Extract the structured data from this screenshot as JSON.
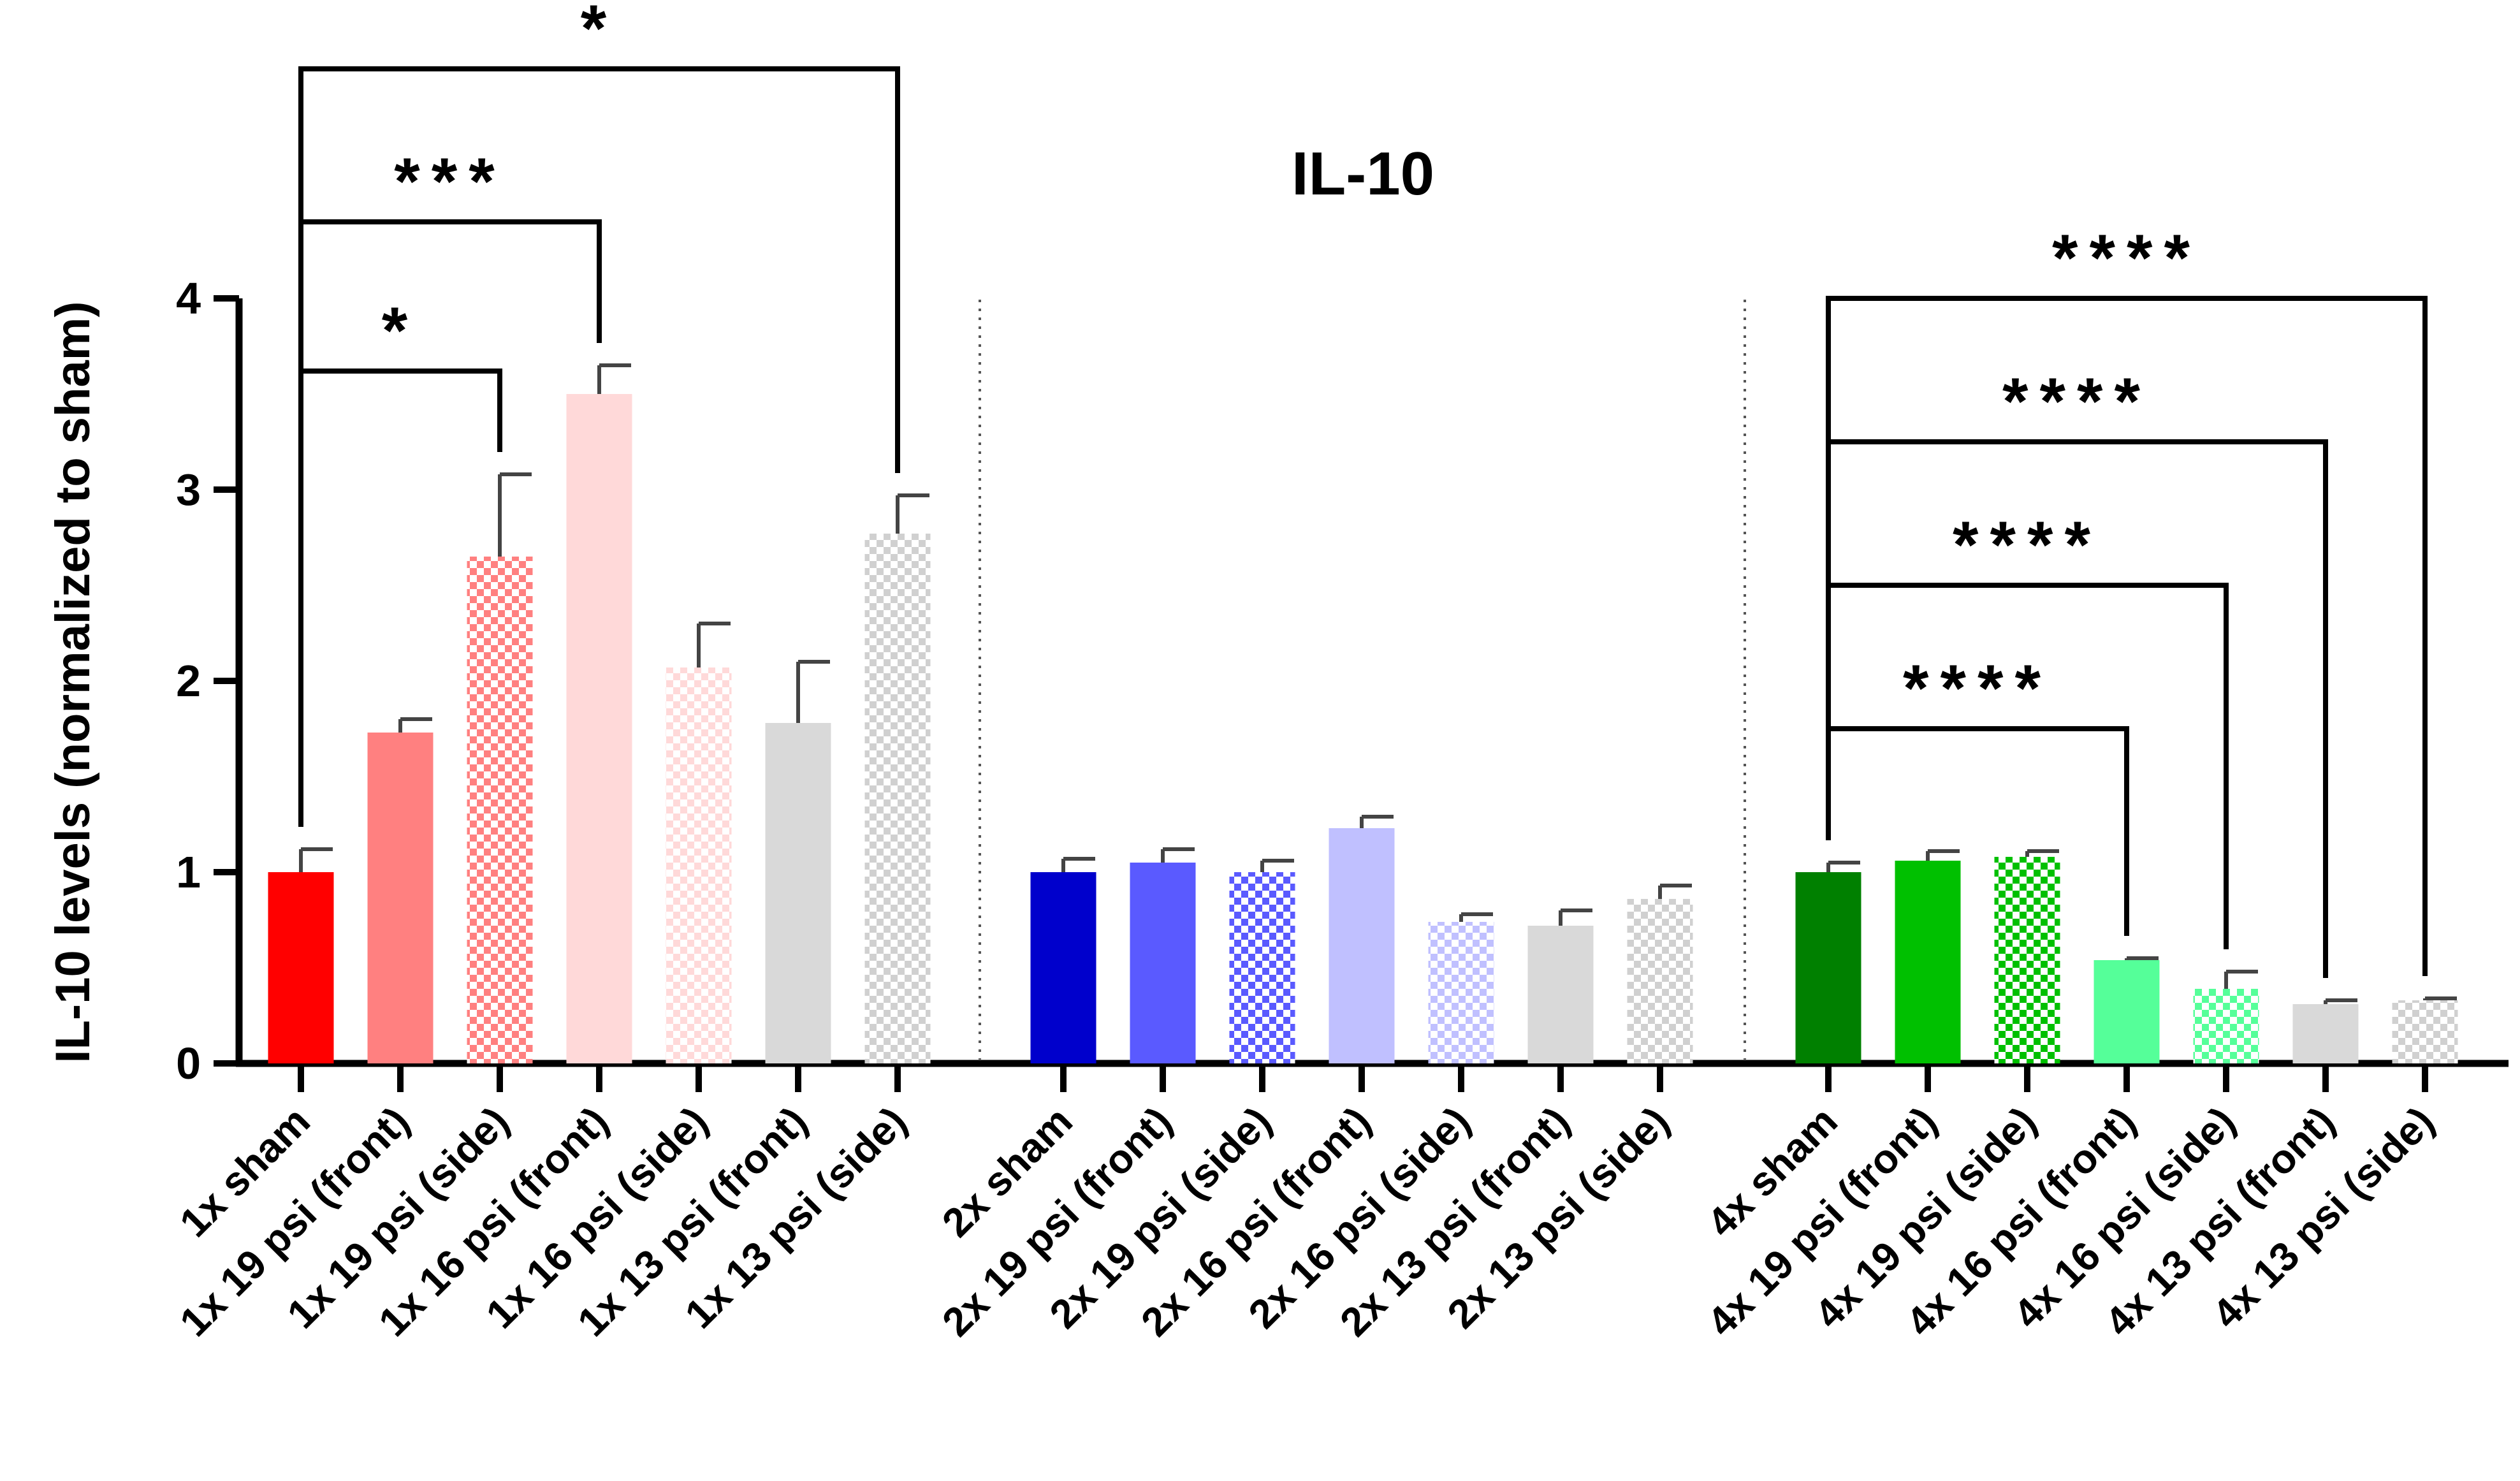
{
  "chart_data": {
    "type": "bar",
    "title": "IL-10",
    "ylabel": "IL-10 levels (normalized to sham)",
    "xlabel": "",
    "ylim": [
      0,
      4
    ],
    "yticks": [
      0,
      1,
      2,
      3,
      4
    ],
    "grid": false,
    "legend": "none",
    "groups": [
      {
        "bars": [
          {
            "label": "1x sham",
            "value": 1.0,
            "error": 0.12,
            "color": "#ff0000",
            "pattern": "solid"
          },
          {
            "label": "1x 19 psi (front)",
            "value": 1.73,
            "error": 0.07,
            "color": "#ff8080",
            "pattern": "solid"
          },
          {
            "label": "1x 19 psi (side)",
            "value": 2.65,
            "error": 0.43,
            "color": "#ff8080",
            "pattern": "checker"
          },
          {
            "label": "1x 16 psi (front)",
            "value": 3.5,
            "error": 0.15,
            "color": "#ffd9d9",
            "pattern": "solid"
          },
          {
            "label": "1x 16 psi (side)",
            "value": 2.07,
            "error": 0.23,
            "color": "#ffd9d9",
            "pattern": "checker"
          },
          {
            "label": "1x 13 psi (front)",
            "value": 1.78,
            "error": 0.32,
            "color": "#d9d9d9",
            "pattern": "solid"
          },
          {
            "label": "1x 13 psi (side)",
            "value": 2.77,
            "error": 0.2,
            "color": "#d0d0d0",
            "pattern": "checker"
          }
        ]
      },
      {
        "bars": [
          {
            "label": "2x sham",
            "value": 1.0,
            "error": 0.07,
            "color": "#0000cc",
            "pattern": "solid"
          },
          {
            "label": "2x 19 psi (front)",
            "value": 1.05,
            "error": 0.07,
            "color": "#5a5aff",
            "pattern": "solid"
          },
          {
            "label": "2x 19 psi (side)",
            "value": 1.0,
            "error": 0.06,
            "color": "#5a5aff",
            "pattern": "checker"
          },
          {
            "label": "2x 16 psi (front)",
            "value": 1.23,
            "error": 0.06,
            "color": "#c0c0ff",
            "pattern": "solid"
          },
          {
            "label": "2x 16 psi (side)",
            "value": 0.74,
            "error": 0.04,
            "color": "#c0c0ff",
            "pattern": "checker"
          },
          {
            "label": "2x 13 psi (front)",
            "value": 0.72,
            "error": 0.08,
            "color": "#d9d9d9",
            "pattern": "solid"
          },
          {
            "label": "2x 13 psi (side)",
            "value": 0.86,
            "error": 0.07,
            "color": "#d0d0d0",
            "pattern": "checker"
          }
        ]
      },
      {
        "bars": [
          {
            "label": "4x sham",
            "value": 1.0,
            "error": 0.05,
            "color": "#008000",
            "pattern": "solid"
          },
          {
            "label": "4x 19 psi (front)",
            "value": 1.06,
            "error": 0.05,
            "color": "#00c000",
            "pattern": "solid"
          },
          {
            "label": "4x 19 psi (side)",
            "value": 1.08,
            "error": 0.03,
            "color": "#00c000",
            "pattern": "checker"
          },
          {
            "label": "4x 16 psi (front)",
            "value": 0.54,
            "error": 0.01,
            "color": "#55ff99",
            "pattern": "solid"
          },
          {
            "label": "4x 16 psi (side)",
            "value": 0.39,
            "error": 0.09,
            "color": "#55ff99",
            "pattern": "checker"
          },
          {
            "label": "4x 13 psi (front)",
            "value": 0.31,
            "error": 0.02,
            "color": "#d9d9d9",
            "pattern": "solid"
          },
          {
            "label": "4x 13 psi (side)",
            "value": 0.33,
            "error": 0.01,
            "color": "#d0d0d0",
            "pattern": "checker"
          }
        ]
      }
    ],
    "significance": [
      {
        "group": 0,
        "from": 0,
        "to": 2,
        "y": 3.62,
        "stars": "*"
      },
      {
        "group": 0,
        "from": 0,
        "to": 3,
        "y": 4.4,
        "stars": "***"
      },
      {
        "group": 0,
        "from": 0,
        "to": 6,
        "y": 5.2,
        "stars": "*"
      },
      {
        "group": 2,
        "from": 0,
        "to": 3,
        "y": 1.75,
        "stars": "****"
      },
      {
        "group": 2,
        "from": 0,
        "to": 4,
        "y": 2.5,
        "stars": "****"
      },
      {
        "group": 2,
        "from": 0,
        "to": 5,
        "y": 3.25,
        "stars": "****"
      },
      {
        "group": 2,
        "from": 0,
        "to": 6,
        "y": 4.0,
        "stars": "****"
      }
    ]
  }
}
